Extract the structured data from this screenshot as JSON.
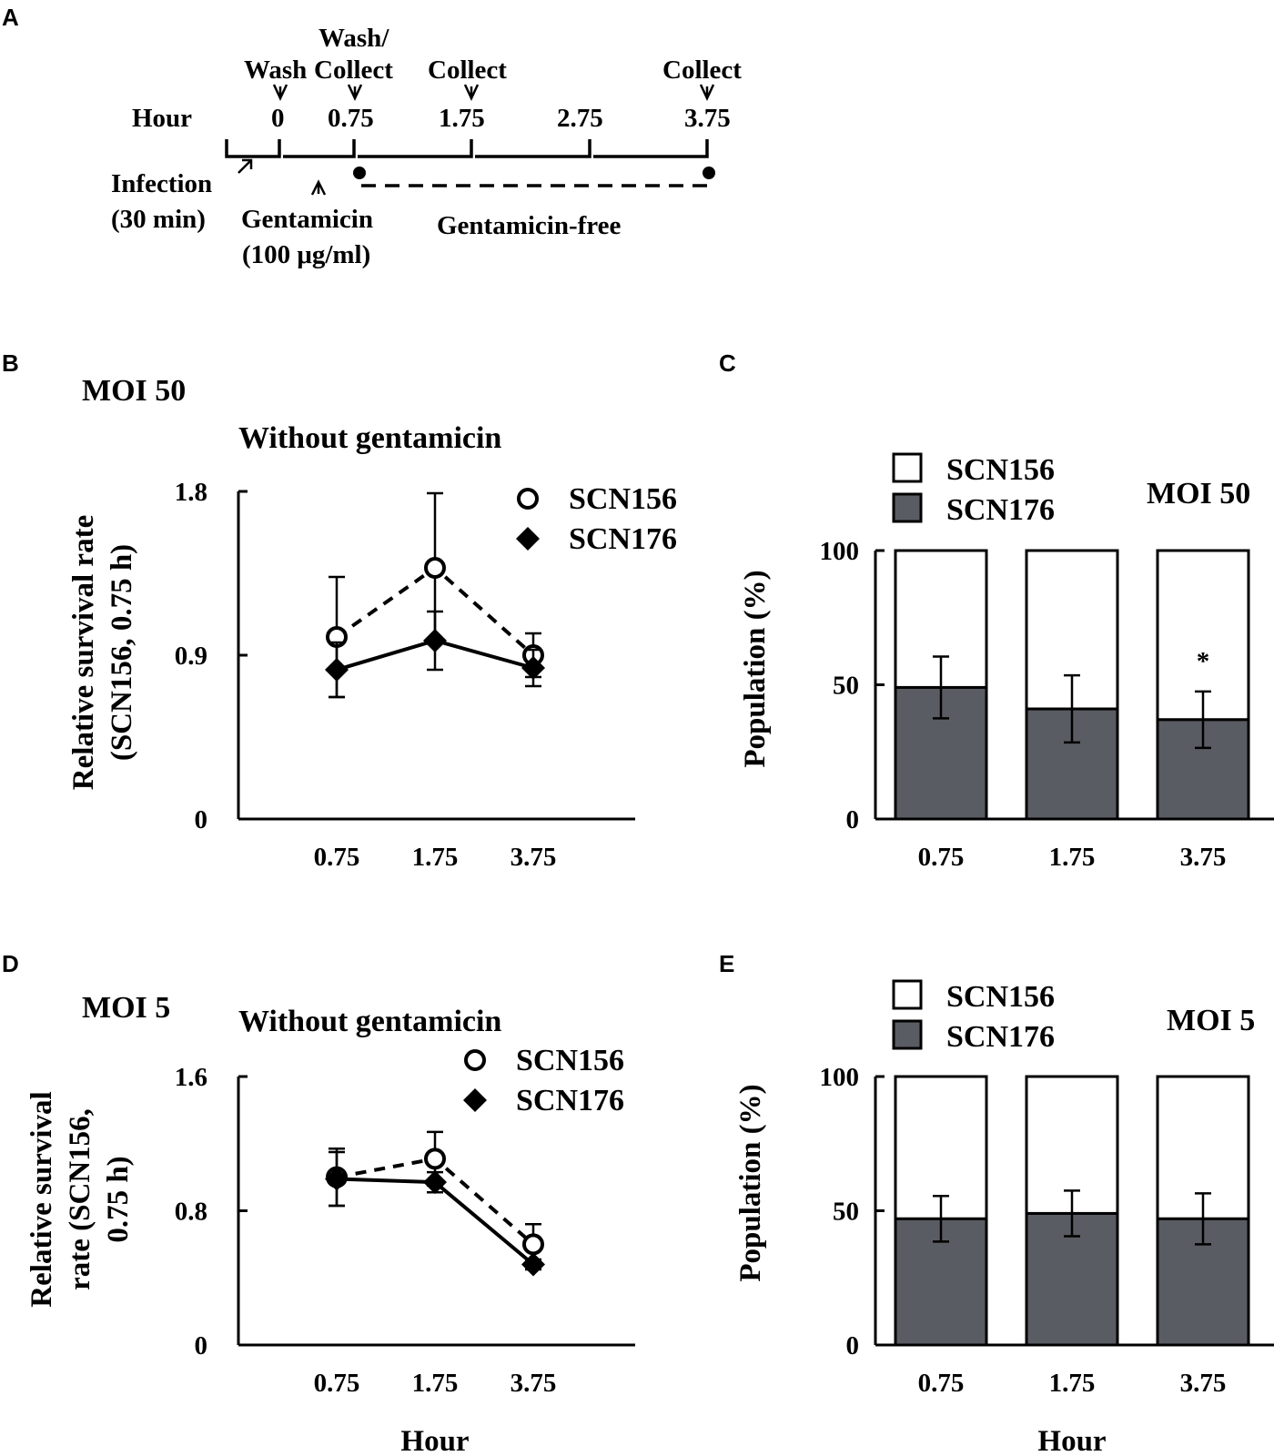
{
  "panel_labels": {
    "a": "A",
    "b": "B",
    "c": "C",
    "d": "D",
    "e": "E"
  },
  "timeline": {
    "hour_label": "Hour",
    "top_labels": [
      "Wash",
      "Wash/",
      "Collect",
      "Collect",
      "Collect"
    ],
    "hour_ticks": [
      "0",
      "0.75",
      "1.75",
      "2.75",
      "3.75"
    ],
    "infection_line1": "Infection",
    "infection_line2": "(30 min)",
    "gentamicin_line1": "Gentamicin",
    "gentamicin_line2": "(100 μg/ml)",
    "gentamicin_free": "Gentamicin-free"
  },
  "chart_data": [
    {
      "panel": "B",
      "type": "line",
      "moi": "MOI  50",
      "title": "Without gentamicin",
      "ylabel_line1": "Relative survival rate",
      "ylabel_line2": "(SCN156, 0.75 h)",
      "xlabel": "",
      "categories": [
        "0.75",
        "1.75",
        "3.75"
      ],
      "yticks": [
        "0",
        "0.9",
        "1.8"
      ],
      "ylim": [
        0,
        1.8
      ],
      "series": [
        {
          "name": "SCN156",
          "marker": "open-circle",
          "line": "dashed",
          "values": [
            1.0,
            1.38,
            0.9
          ],
          "errors": [
            0.33,
            0.41,
            0.12
          ]
        },
        {
          "name": "SCN176",
          "marker": "filled-diamond",
          "line": "solid",
          "values": [
            0.82,
            0.98,
            0.83
          ],
          "errors": [
            0.15,
            0.16,
            0.1
          ]
        }
      ]
    },
    {
      "panel": "C",
      "type": "bar",
      "stacked": true,
      "moi": "MOI 50",
      "ylabel": "Population (%)",
      "xlabel": "",
      "categories": [
        "0.75",
        "1.75",
        "3.75"
      ],
      "yticks": [
        "0",
        "50",
        "100"
      ],
      "ylim": [
        0,
        100
      ],
      "series": [
        {
          "name": "SCN156",
          "color": "#ffffff",
          "values": [
            51,
            59,
            63
          ]
        },
        {
          "name": "SCN176",
          "color": "#5a5c63",
          "values": [
            49,
            41,
            37
          ],
          "errors": [
            11.5,
            12.5,
            10.5
          ]
        }
      ],
      "annotations": [
        {
          "category": "3.75",
          "text": "*"
        }
      ]
    },
    {
      "panel": "D",
      "type": "line",
      "moi": "MOI  5",
      "title": "Without gentamicin",
      "ylabel_line1": "Relative survival",
      "ylabel_line2": "rate (SCN156,",
      "ylabel_line3": "0.75 h)",
      "xlabel": "Hour",
      "categories": [
        "0.75",
        "1.75",
        "3.75"
      ],
      "yticks": [
        "0",
        "0.8",
        "1.6"
      ],
      "ylim": [
        0,
        1.6
      ],
      "series": [
        {
          "name": "SCN156",
          "marker": "open-circle",
          "line": "dashed",
          "values": [
            1.0,
            1.11,
            0.6
          ],
          "errors": [
            0.17,
            0.16,
            0.12
          ]
        },
        {
          "name": "SCN176",
          "marker": "filled-diamond",
          "line": "solid",
          "values": [
            0.99,
            0.97,
            0.48
          ],
          "errors": [
            0.16,
            0.06,
            0.03
          ]
        }
      ]
    },
    {
      "panel": "E",
      "type": "bar",
      "stacked": true,
      "moi": "MOI 5",
      "ylabel": "Population (%)",
      "xlabel": "Hour",
      "categories": [
        "0.75",
        "1.75",
        "3.75"
      ],
      "yticks": [
        "0",
        "50",
        "100"
      ],
      "ylim": [
        0,
        100
      ],
      "series": [
        {
          "name": "SCN156",
          "color": "#ffffff",
          "values": [
            53,
            51,
            53
          ]
        },
        {
          "name": "SCN176",
          "color": "#5a5c63",
          "values": [
            47,
            49,
            47
          ],
          "errors": [
            8.5,
            8.5,
            9.5
          ]
        }
      ],
      "annotations": []
    }
  ]
}
